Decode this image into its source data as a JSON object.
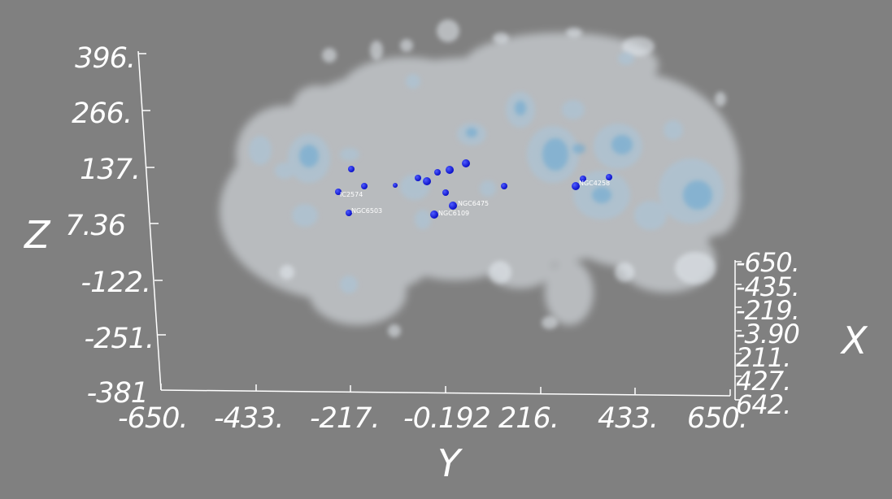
{
  "axes": {
    "z": {
      "title": "Z",
      "ticks": [
        "396.",
        "266.",
        "137.",
        "7.36",
        "-122.",
        "-251.",
        "-381"
      ]
    },
    "y": {
      "title": "Y",
      "ticks": [
        "-650.",
        "-433.",
        "-217.",
        "-0.192",
        "216.",
        "433.",
        "650."
      ]
    },
    "x": {
      "title": "X",
      "ticks": [
        "-650.",
        "-435.",
        "-219.",
        "-3.90",
        "211.",
        "427.",
        "642."
      ]
    }
  },
  "galaxy_labels": [
    "IC2574",
    "NGC6503",
    "NGC6475",
    "NGC6109",
    "NGC4258"
  ],
  "colors": {
    "background": "#808080",
    "axis": "#ffffff",
    "shell_outer": "#e6ecf2",
    "shell_mid": "#a9c6dc",
    "shell_inner": "#5fa4d2",
    "marker": "#0a10c8"
  }
}
